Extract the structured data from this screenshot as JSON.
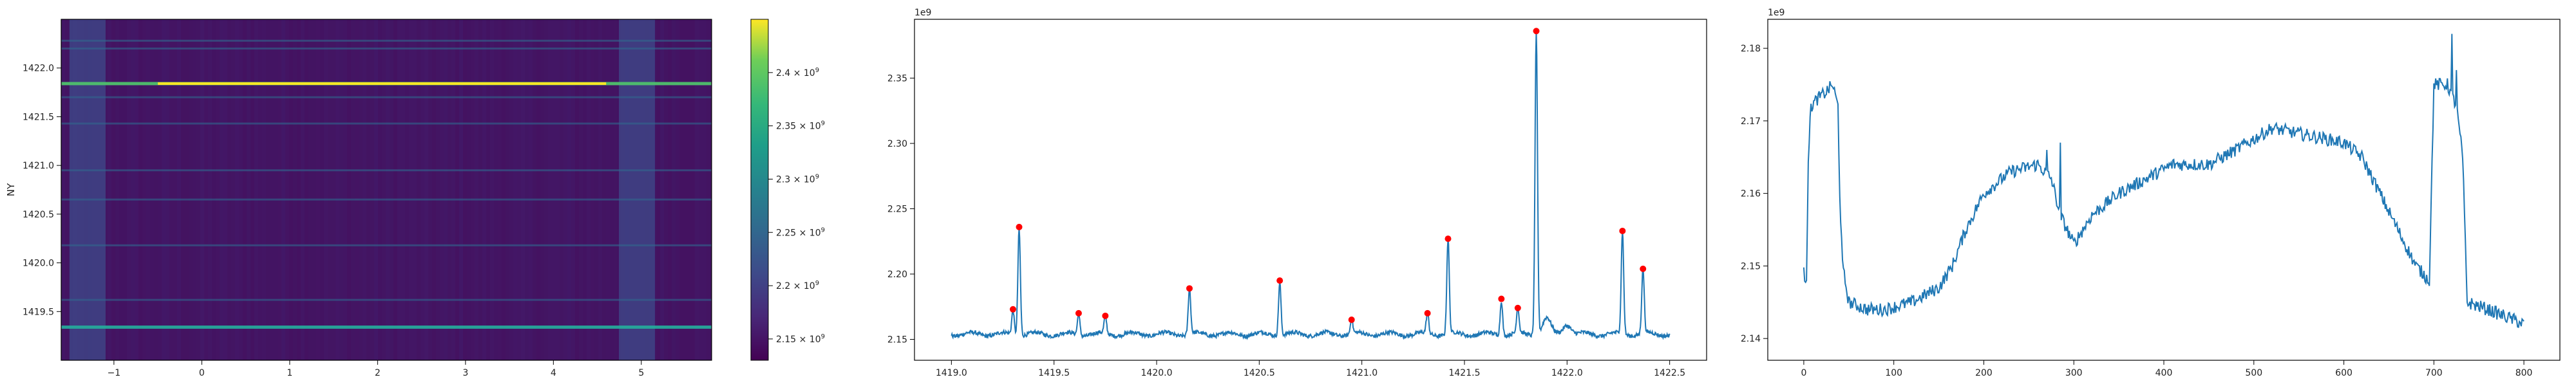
{
  "chart_data": [
    {
      "type": "heatmap",
      "xlabel": "",
      "ylabel": "NY",
      "xlim": [
        -1.6,
        5.8
      ],
      "ylim": [
        1419.0,
        1422.5
      ],
      "xticks": [
        "−1",
        "0",
        "1",
        "2",
        "3",
        "4",
        "5"
      ],
      "xtick_values": [
        -1,
        0,
        1,
        2,
        3,
        4,
        5
      ],
      "yticks": [
        "1419.5",
        "1420.0",
        "1420.5",
        "1421.0",
        "1421.5",
        "1422.0"
      ],
      "ytick_values": [
        1419.5,
        1420.0,
        1420.5,
        1421.0,
        1421.5,
        1422.0
      ],
      "colormap": "viridis",
      "colorbar": {
        "min": 2130000000.0,
        "max": 2450000000.0,
        "ticks": [
          2150000000.0,
          2200000000.0,
          2250000000.0,
          2300000000.0,
          2350000000.0,
          2400000000.0
        ],
        "tick_mantissas": [
          "2.15",
          "2.2",
          "2.25",
          "2.3",
          "2.35",
          "2.4"
        ],
        "tick_base": "× 10",
        "tick_exponent": "9"
      },
      "bright_bands_y": [
        1421.84,
        1419.34
      ],
      "faint_bands_y": [
        1422.28,
        1422.2,
        1421.7,
        1421.43,
        1420.95,
        1420.65,
        1420.18,
        1419.62
      ],
      "bright_columns_x": [
        -1.3,
        4.95
      ]
    },
    {
      "type": "scatter",
      "offset_label": "1e9",
      "xlim": [
        1418.82,
        1422.68
      ],
      "ylim": [
        2134000000.0,
        2395000000.0
      ],
      "xticks": [
        "1419.0",
        "1419.5",
        "1420.0",
        "1420.5",
        "1421.0",
        "1421.5",
        "1422.0",
        "1422.5"
      ],
      "xtick_values": [
        1419.0,
        1419.5,
        1420.0,
        1420.5,
        1421.0,
        1421.5,
        1422.0,
        1422.5
      ],
      "yticks": [
        "2.15",
        "2.20",
        "2.25",
        "2.30",
        "2.35"
      ],
      "ytick_values": [
        2150000000.0,
        2200000000.0,
        2250000000.0,
        2300000000.0,
        2350000000.0
      ],
      "baseline": 2154000000.0,
      "line_color": "#1f77b4",
      "marker_color": "#ff0000",
      "peaks": [
        {
          "x": 1419.3,
          "y": 2173000000.0
        },
        {
          "x": 1419.33,
          "y": 2236000000.0
        },
        {
          "x": 1419.62,
          "y": 2170000000.0
        },
        {
          "x": 1419.75,
          "y": 2168000000.0
        },
        {
          "x": 1420.16,
          "y": 2189000000.0
        },
        {
          "x": 1420.6,
          "y": 2195000000.0
        },
        {
          "x": 1420.95,
          "y": 2165000000.0
        },
        {
          "x": 1421.32,
          "y": 2170000000.0
        },
        {
          "x": 1421.42,
          "y": 2227000000.0
        },
        {
          "x": 1421.68,
          "y": 2181000000.0
        },
        {
          "x": 1421.76,
          "y": 2174000000.0
        },
        {
          "x": 1421.85,
          "y": 2386000000.0
        },
        {
          "x": 1422.27,
          "y": 2233000000.0
        },
        {
          "x": 1422.37,
          "y": 2204000000.0
        }
      ]
    },
    {
      "type": "line",
      "offset_label": "1e9",
      "xlim": [
        -40,
        840
      ],
      "ylim": [
        2137000000.0,
        2184000000.0
      ],
      "xticks": [
        "0",
        "100",
        "200",
        "300",
        "400",
        "500",
        "600",
        "700",
        "800"
      ],
      "xtick_values": [
        0,
        100,
        200,
        300,
        400,
        500,
        600,
        700,
        800
      ],
      "yticks": [
        "2.14",
        "2.15",
        "2.16",
        "2.17",
        "2.18"
      ],
      "ytick_values": [
        2140000000.0,
        2150000000.0,
        2160000000.0,
        2170000000.0,
        2180000000.0
      ],
      "line_color": "#1f77b4",
      "x_range": [
        0,
        800
      ],
      "profile": [
        [
          0,
          2149000000.0
        ],
        [
          3,
          2148000000.0
        ],
        [
          5,
          2165000000.0
        ],
        [
          8,
          2172000000.0
        ],
        [
          15,
          2173000000.0
        ],
        [
          25,
          2174000000.0
        ],
        [
          32,
          2175000000.0
        ],
        [
          38,
          2172000000.0
        ],
        [
          40,
          2160000000.0
        ],
        [
          43,
          2150000000.0
        ],
        [
          50,
          2145000000.0
        ],
        [
          70,
          2144000000.0
        ],
        [
          90,
          2144000000.0
        ],
        [
          120,
          2145000000.0
        ],
        [
          150,
          2147000000.0
        ],
        [
          165,
          2150000000.0
        ],
        [
          180,
          2155000000.0
        ],
        [
          200,
          2160000000.0
        ],
        [
          230,
          2163000000.0
        ],
        [
          260,
          2164000000.0
        ],
        [
          275,
          2162000000.0
        ],
        [
          285,
          2157000000.0
        ],
        [
          300,
          2153000000.0
        ],
        [
          320,
          2157000000.0
        ],
        [
          350,
          2160000000.0
        ],
        [
          380,
          2162000000.0
        ],
        [
          410,
          2164000000.0
        ],
        [
          450,
          2164000000.0
        ],
        [
          480,
          2166000000.0
        ],
        [
          520,
          2169000000.0
        ],
        [
          560,
          2168000000.0
        ],
        [
          600,
          2167000000.0
        ],
        [
          620,
          2165000000.0
        ],
        [
          640,
          2160000000.0
        ],
        [
          660,
          2155000000.0
        ],
        [
          680,
          2150000000.0
        ],
        [
          695,
          2148000000.0
        ],
        [
          700,
          2175000000.0
        ],
        [
          715,
          2175000000.0
        ],
        [
          725,
          2172000000.0
        ],
        [
          732,
          2165000000.0
        ],
        [
          737,
          2145000000.0
        ],
        [
          760,
          2144000000.0
        ],
        [
          780,
          2143000000.0
        ],
        [
          800,
          2142000000.0
        ]
      ],
      "spikes": [
        [
          3,
          2148000000.0
        ],
        [
          285,
          2167000000.0
        ],
        [
          720,
          2182000000.0
        ],
        [
          725,
          2177000000.0
        ],
        [
          270,
          2166000000.0
        ]
      ]
    }
  ]
}
